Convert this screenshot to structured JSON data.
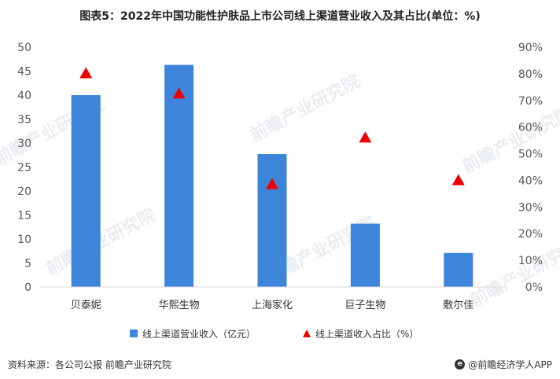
{
  "title": "图表5：2022年中国功能性护肤品上市公司线上渠道营业收入及其占比(单位：%)",
  "source": "资料来源：各公司公报 前瞻产业研究院",
  "brand": "@前瞻经济学人APP",
  "brand_icon_char": "e",
  "watermark": "前瞻产业研究院",
  "colors": {
    "bar": "#3c85db",
    "marker": "#ee0000",
    "axis_text": "#595959",
    "baseline": "#d9d9d9"
  },
  "chart_data": {
    "type": "bar",
    "categories": [
      "贝泰妮",
      "华熙生物",
      "上海家化",
      "巨子生物",
      "敷尔佳"
    ],
    "series": [
      {
        "name": "线上渠道营业收入（亿元）",
        "kind": "bar",
        "axis": "left",
        "values": [
          40.0,
          46.3,
          27.7,
          13.2,
          7.1
        ]
      },
      {
        "name": "线上渠道收入占比（%）",
        "kind": "marker",
        "axis": "right",
        "values": [
          80.1,
          72.5,
          38.5,
          56.0,
          40.0
        ]
      }
    ],
    "ylim_left": [
      0,
      50
    ],
    "yticks_left": [
      "0",
      "5",
      "10",
      "15",
      "20",
      "25",
      "30",
      "35",
      "40",
      "45",
      "50"
    ],
    "ylim_right": [
      0,
      90
    ],
    "yticks_right": [
      "0%",
      "10%",
      "20%",
      "30%",
      "40%",
      "50%",
      "60%",
      "70%",
      "80%",
      "90%"
    ],
    "grid": false,
    "legend_position": "bottom"
  }
}
